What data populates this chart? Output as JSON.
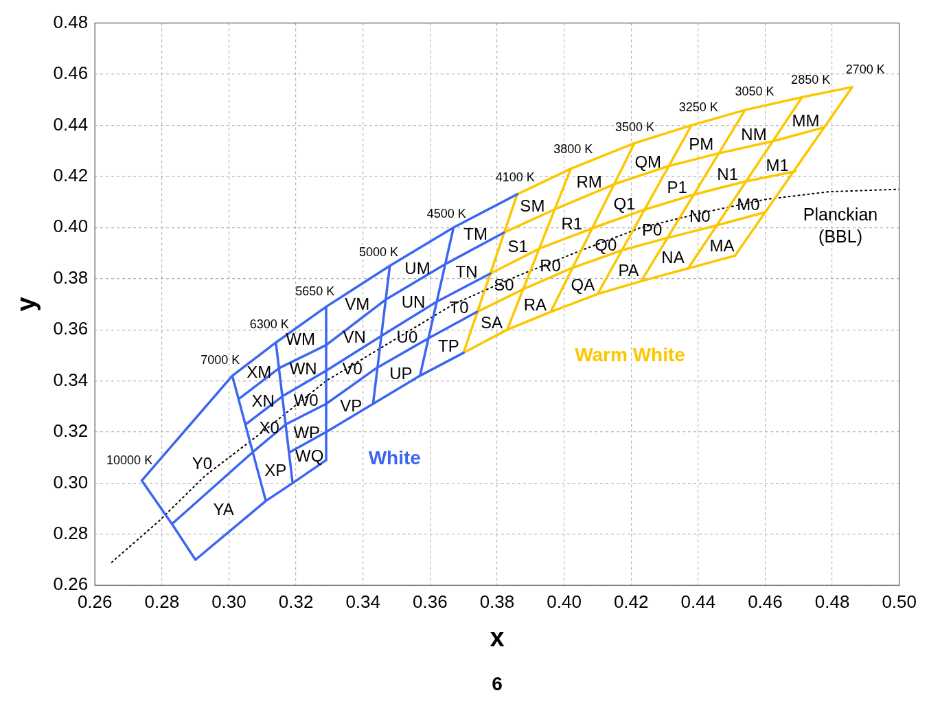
{
  "chart_data": {
    "type": "line",
    "xlabel": "x",
    "ylabel": "y",
    "xlim": [
      0.26,
      0.5
    ],
    "ylim": [
      0.26,
      0.48
    ],
    "xticks": [
      0.26,
      0.28,
      {
        "value": 0.3,
        "label": "0.30"
      },
      0.32,
      0.34,
      0.36,
      0.38,
      {
        "value": 0.4,
        "label": "0.40"
      },
      0.42,
      0.44,
      0.46,
      0.48,
      {
        "value": 0.5,
        "label": "0.50"
      }
    ],
    "yticks": [
      0.26,
      0.28,
      {
        "value": 0.3,
        "label": "0.30"
      },
      0.32,
      0.34,
      0.36,
      0.38,
      {
        "value": 0.4,
        "label": "0.40"
      },
      0.42,
      0.44,
      0.46,
      0.48
    ],
    "grid": true,
    "series": [
      {
        "name": "White",
        "color": "#3b66f2",
        "x": [
          0.274,
          0.301,
          0.314,
          0.329,
          0.348,
          0.367,
          0.386,
          null,
          0.303,
          0.315,
          0.329,
          0.347,
          0.365,
          0.382,
          null,
          0.305,
          0.316,
          0.329,
          0.346,
          0.362,
          0.378,
          null,
          0.283,
          0.307,
          0.317,
          0.329,
          0.344,
          0.36,
          0.374,
          null,
          0.318,
          0.329,
          0.343,
          0.357,
          0.37,
          null,
          0.29,
          0.311,
          0.319,
          0.329,
          null,
          0.274,
          0.283,
          0.29,
          null,
          0.301,
          0.311,
          null,
          0.314,
          0.319,
          null,
          0.329,
          0.329,
          null,
          0.348,
          0.343,
          null,
          0.367,
          0.357
        ],
        "values": [
          0.301,
          0.342,
          0.355,
          0.369,
          0.385,
          0.4,
          0.413,
          null,
          0.333,
          0.345,
          0.354,
          0.372,
          0.386,
          0.398,
          null,
          0.323,
          0.334,
          0.344,
          0.358,
          0.371,
          0.382,
          null,
          0.284,
          0.312,
          0.323,
          0.331,
          0.345,
          0.357,
          0.367,
          null,
          0.312,
          0.32,
          0.331,
          0.342,
          0.351,
          null,
          0.27,
          0.293,
          0.3,
          0.309,
          null,
          0.301,
          0.284,
          0.27,
          null,
          0.342,
          0.293,
          null,
          0.355,
          0.3,
          null,
          0.369,
          0.309,
          null,
          0.385,
          0.331,
          null,
          0.4,
          0.342
        ]
      },
      {
        "name": "Warm White",
        "color": "#fcc700",
        "x": [
          0.386,
          0.402,
          0.421,
          0.438,
          0.454,
          0.471,
          0.486,
          null,
          0.382,
          0.397,
          0.415,
          0.431,
          0.446,
          0.463,
          0.477,
          null,
          0.378,
          0.393,
          0.409,
          0.424,
          0.439,
          0.454,
          0.469,
          null,
          0.374,
          0.388,
          0.402,
          0.417,
          0.431,
          0.446,
          0.46,
          null,
          0.37,
          0.383,
          0.396,
          0.41,
          0.423,
          0.437,
          0.451,
          null,
          0.386,
          0.37,
          null,
          0.402,
          0.383,
          null,
          0.421,
          0.396,
          null,
          0.438,
          0.41,
          null,
          0.454,
          0.423,
          null,
          0.471,
          0.437,
          null,
          0.486,
          0.451
        ],
        "values": [
          0.413,
          0.423,
          0.433,
          0.44,
          0.446,
          0.451,
          0.455,
          null,
          0.398,
          0.407,
          0.417,
          0.424,
          0.429,
          0.434,
          0.439,
          null,
          0.382,
          0.392,
          0.4,
          0.407,
          0.413,
          0.418,
          0.422,
          null,
          0.367,
          0.376,
          0.384,
          0.391,
          0.396,
          0.401,
          0.406,
          null,
          0.351,
          0.36,
          0.367,
          0.374,
          0.379,
          0.384,
          0.389,
          null,
          0.413,
          0.351,
          null,
          0.423,
          0.36,
          null,
          0.433,
          0.367,
          null,
          0.44,
          0.374,
          null,
          0.446,
          0.379,
          null,
          0.451,
          0.384,
          null,
          0.455,
          0.389
        ]
      },
      {
        "name": "Planckian (BBL)",
        "color": "#000000",
        "line_style": "dotted",
        "x": [
          0.265,
          0.279,
          0.293,
          0.31,
          0.329,
          0.348,
          0.367,
          0.386,
          0.405,
          0.423,
          0.442,
          0.46,
          0.479,
          0.5
        ],
        "values": [
          0.269,
          0.285,
          0.303,
          0.32,
          0.34,
          0.355,
          0.37,
          0.381,
          0.391,
          0.4,
          0.406,
          0.411,
          0.414,
          0.415
        ]
      }
    ],
    "annotations": [
      "10000 K",
      "7000 K",
      "6300 K",
      "5650 K",
      "5000 K",
      "4500 K",
      "4100 K",
      "3800 K",
      "3500 K",
      "3250 K",
      "3050 K",
      "2850 K",
      "2700 K",
      "Y0",
      "YA",
      "XM",
      "XN",
      "X0",
      "XP",
      "WM",
      "WN",
      "W0",
      "WP",
      "WQ",
      "VM",
      "VN",
      "V0",
      "VP",
      "UM",
      "UN",
      "U0",
      "UP",
      "TM",
      "TN",
      "T0",
      "TP",
      "SM",
      "S1",
      "S0",
      "SA",
      "RM",
      "R1",
      "R0",
      "RA",
      "QM",
      "Q1",
      "Q0",
      "QA",
      "PM",
      "P1",
      "P0",
      "PA",
      "NM",
      "N1",
      "N0",
      "NA",
      "MM",
      "M1",
      "M0",
      "MA",
      "6"
    ]
  }
}
